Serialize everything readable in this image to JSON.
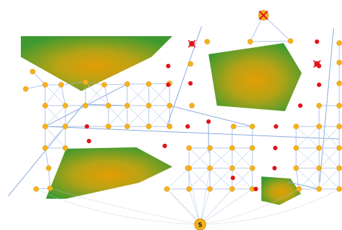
{
  "diagram": {
    "kind": "roadmap path-planning graph",
    "start_marker": "S",
    "colors": {
      "node": "#f5b21d",
      "node_stroke": "#e09a10",
      "invalid_node": "#e3141b",
      "edge": "#9bb3e4",
      "obstacle_outer": "#3f9a2f",
      "obstacle_inner": "#e0a107",
      "goal_marker": "#f2b31e"
    },
    "icons": [
      "start-node-icon",
      "goal-node-icon",
      "blocked-node-icon"
    ]
  }
}
